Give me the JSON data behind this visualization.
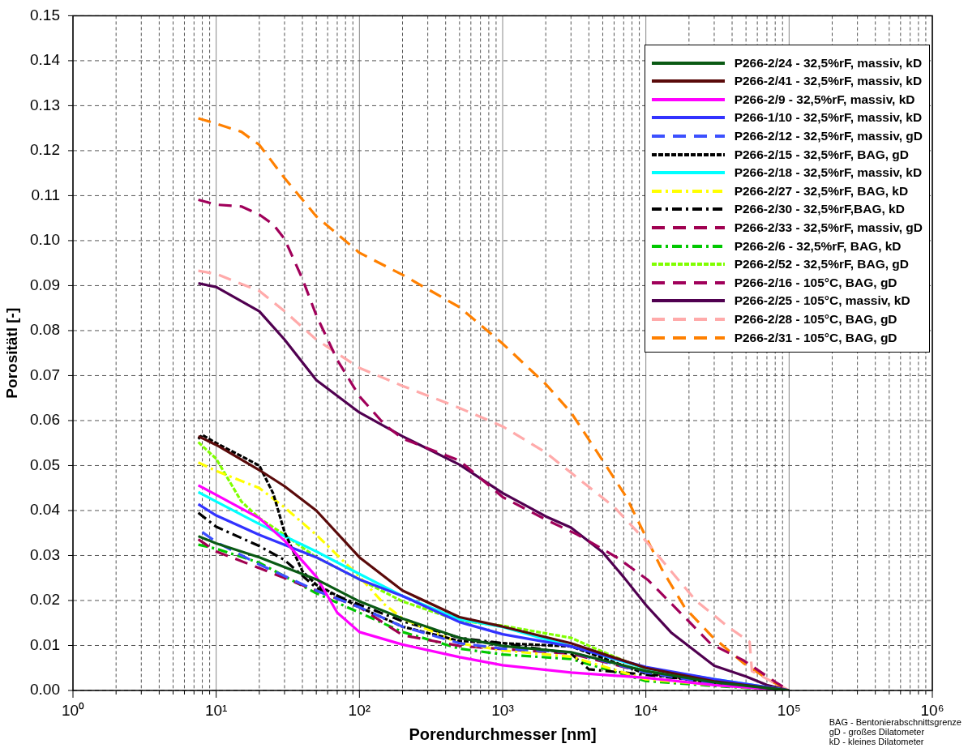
{
  "chart_data": {
    "type": "line",
    "xlabel": "Porendurchmesser [nm]",
    "ylabel": "Porositätl [-]",
    "log": "x",
    "grid": true,
    "legend": "top right",
    "marker": "none",
    "xlim": [
      1,
      1000000
    ],
    "ylim": [
      0,
      0.15
    ],
    "xticks": [
      {
        "value": 1,
        "label": "10⁰"
      },
      {
        "value": 2,
        "label": null
      },
      {
        "value": 3,
        "label": null
      },
      {
        "value": 4,
        "label": null
      },
      {
        "value": 5,
        "label": null
      },
      {
        "value": 6,
        "label": null
      },
      {
        "value": 7,
        "label": null
      },
      {
        "value": 8,
        "label": null
      },
      {
        "value": 9,
        "label": null
      },
      {
        "value": 10,
        "label": "10¹"
      },
      {
        "value": 20,
        "label": null
      },
      {
        "value": 30,
        "label": null
      },
      {
        "value": 40,
        "label": null
      },
      {
        "value": 50,
        "label": null
      },
      {
        "value": 60,
        "label": null
      },
      {
        "value": 70,
        "label": null
      },
      {
        "value": 80,
        "label": null
      },
      {
        "value": 90,
        "label": null
      },
      {
        "value": 100,
        "label": "10²"
      },
      {
        "value": 200,
        "label": null
      },
      {
        "value": 300,
        "label": null
      },
      {
        "value": 400,
        "label": null
      },
      {
        "value": 500,
        "label": null
      },
      {
        "value": 600,
        "label": null
      },
      {
        "value": 700,
        "label": null
      },
      {
        "value": 800,
        "label": null
      },
      {
        "value": 900,
        "label": null
      },
      {
        "value": 1000,
        "label": "10³"
      },
      {
        "value": 2000,
        "label": null
      },
      {
        "value": 3000,
        "label": null
      },
      {
        "value": 4000,
        "label": null
      },
      {
        "value": 5000,
        "label": null
      },
      {
        "value": 6000,
        "label": null
      },
      {
        "value": 7000,
        "label": null
      },
      {
        "value": 8000,
        "label": null
      },
      {
        "value": 9000,
        "label": null
      },
      {
        "value": 10000,
        "label": "10⁴"
      },
      {
        "value": 20000,
        "label": null
      },
      {
        "value": 30000,
        "label": null
      },
      {
        "value": 40000,
        "label": null
      },
      {
        "value": 50000,
        "label": null
      },
      {
        "value": 60000,
        "label": null
      },
      {
        "value": 70000,
        "label": null
      },
      {
        "value": 80000,
        "label": null
      },
      {
        "value": 90000,
        "label": null
      },
      {
        "value": 100000,
        "label": "10⁵"
      },
      {
        "value": 200000,
        "label": null
      },
      {
        "value": 300000,
        "label": null
      },
      {
        "value": 400000,
        "label": null
      },
      {
        "value": 500000,
        "label": null
      },
      {
        "value": 600000,
        "label": null
      },
      {
        "value": 700000,
        "label": null
      },
      {
        "value": 800000,
        "label": null
      },
      {
        "value": 900000,
        "label": null
      },
      {
        "value": 1000000,
        "label": "10⁶"
      }
    ],
    "yticks": [
      {
        "value": 0,
        "label": "0.00"
      },
      {
        "value": 0.01,
        "label": "0.01"
      },
      {
        "value": 0.02,
        "label": "0.02"
      },
      {
        "value": 0.03,
        "label": "0.03"
      },
      {
        "value": 0.04,
        "label": "0.04"
      },
      {
        "value": 0.05,
        "label": "0.05"
      },
      {
        "value": 0.06,
        "label": "0.06"
      },
      {
        "value": 0.07,
        "label": "0.07"
      },
      {
        "value": 0.08,
        "label": "0.08"
      },
      {
        "value": 0.09,
        "label": "0.09"
      },
      {
        "value": 0.1,
        "label": "0.10"
      },
      {
        "value": 0.11,
        "label": "0.11"
      },
      {
        "value": 0.12,
        "label": "0.12"
      },
      {
        "value": 0.13,
        "label": "0.13"
      },
      {
        "value": 0.14,
        "label": "0.14"
      },
      {
        "value": 0.15,
        "label": "0.15"
      }
    ],
    "annotations": [
      "BAG - Bentonierabschnittsgrenze",
      "gD - großes Dilatometer",
      "kD - kleines Dilatometer"
    ],
    "series": [
      {
        "name": "P266-2/24 - 32,5%rF, massiv, kD",
        "color": "#0a5a14",
        "line_style": "solid",
        "x": [
          7.5,
          10,
          20,
          50,
          100,
          200,
          500,
          1000,
          3000,
          10000,
          30000,
          100000
        ],
        "values": [
          0.0343,
          0.0327,
          0.0296,
          0.0247,
          0.0198,
          0.016,
          0.0117,
          0.0099,
          0.0085,
          0.0043,
          0.0018,
          0
        ]
      },
      {
        "name": "P266-2/41 - 32,5%rF, massiv, kD",
        "color": "#5a0a0a",
        "line_style": "solid",
        "x": [
          7.5,
          10,
          20,
          30,
          50,
          100,
          200,
          500,
          1000,
          3000,
          10000,
          30000,
          100000
        ],
        "values": [
          0.0565,
          0.0546,
          0.049,
          0.0454,
          0.04,
          0.0296,
          0.0222,
          0.0163,
          0.0142,
          0.0105,
          0.005,
          0.002,
          0
        ]
      },
      {
        "name": "P266-2/9 - 32,5%rF, massiv, kD",
        "color": "#ff00ff",
        "line_style": "solid",
        "x": [
          7.5,
          10,
          20,
          30,
          50,
          70,
          100,
          200,
          500,
          1000,
          3000,
          10000,
          30000,
          100000
        ],
        "values": [
          0.0456,
          0.0435,
          0.0383,
          0.0333,
          0.0253,
          0.0173,
          0.013,
          0.0102,
          0.0074,
          0.0056,
          0.004,
          0.0028,
          0.0012,
          0
        ]
      },
      {
        "name": "P266-1/10 - 32,5%rF, massiv, kD",
        "color": "#3232ff",
        "line_style": "solid",
        "x": [
          7.5,
          10,
          20,
          50,
          100,
          200,
          500,
          1000,
          3000,
          10000,
          30000,
          100000
        ],
        "values": [
          0.0414,
          0.0389,
          0.0346,
          0.0296,
          0.0247,
          0.021,
          0.0152,
          0.0125,
          0.0098,
          0.0052,
          0.0025,
          0
        ]
      },
      {
        "name": "P266-2/12 - 32,5%rF, massiv, gD",
        "color": "#3c50ff",
        "line_style": "dashed",
        "x": [
          8,
          10,
          20,
          50,
          100,
          200,
          500,
          1000,
          3000,
          10000,
          30000,
          100000
        ],
        "values": [
          0.0352,
          0.033,
          0.028,
          0.0222,
          0.0185,
          0.0142,
          0.0105,
          0.0093,
          0.0085,
          0.004,
          0.0015,
          0
        ]
      },
      {
        "name": "P266-2/15 - 32,5%rF, BAG, gD",
        "color": "#000000",
        "line_style": "dotted",
        "x": [
          7.5,
          8,
          10,
          20,
          25,
          30,
          40,
          50,
          100,
          200,
          500,
          1000,
          3000,
          10000,
          30000,
          100000
        ],
        "values": [
          0.0559,
          0.0568,
          0.055,
          0.05,
          0.0438,
          0.0352,
          0.0265,
          0.0235,
          0.0185,
          0.0142,
          0.011,
          0.0105,
          0.0098,
          0.0037,
          0.0017,
          0
        ]
      },
      {
        "name": "P266-2/18 - 32,5%rF, massiv, kD",
        "color": "#00ffff",
        "line_style": "solid",
        "x": [
          7.5,
          10,
          20,
          50,
          100,
          200,
          500,
          1000,
          3000,
          10000,
          30000,
          100000
        ],
        "values": [
          0.0441,
          0.042,
          0.037,
          0.0309,
          0.0259,
          0.021,
          0.0158,
          0.0141,
          0.0098,
          0.0049,
          0.0025,
          0
        ]
      },
      {
        "name": "P266-2/27 - 32,5%rF, BAG, kD",
        "color": "#ffff00",
        "line_style": "dashdot",
        "x": [
          7.5,
          10,
          20,
          30,
          50,
          100,
          150,
          200,
          500,
          1000,
          3000,
          10000,
          30000,
          100000
        ],
        "values": [
          0.0507,
          0.0488,
          0.045,
          0.0407,
          0.0346,
          0.0253,
          0.0191,
          0.016,
          0.0105,
          0.0089,
          0.0075,
          0.0025,
          0.0012,
          0
        ]
      },
      {
        "name": "P266-2/30 - 32,5%rF,BAG, kD",
        "color": "#000000",
        "line_style": "dashdot",
        "x": [
          7.5,
          10,
          20,
          30,
          50,
          100,
          200,
          500,
          1000,
          3000,
          4000,
          10000,
          30000,
          100000
        ],
        "values": [
          0.0395,
          0.0364,
          0.0321,
          0.029,
          0.0228,
          0.0191,
          0.0154,
          0.0117,
          0.0105,
          0.0082,
          0.0047,
          0.0035,
          0.0018,
          0
        ]
      },
      {
        "name": "P266-2/33 - 32,5%rF, massiv, gD",
        "color": "#a00050",
        "line_style": "dashed",
        "x": [
          7.5,
          10,
          20,
          50,
          100,
          200,
          500,
          1000,
          3000,
          10000,
          30000,
          100000
        ],
        "values": [
          0.0336,
          0.0309,
          0.0272,
          0.0222,
          0.0185,
          0.0123,
          0.0099,
          0.0092,
          0.0082,
          0.004,
          0.0015,
          0
        ]
      },
      {
        "name": "P266-2/6 - 32,5%rF, BAG, kD",
        "color": "#00c800",
        "line_style": "dashdot",
        "x": [
          7.5,
          10,
          20,
          50,
          100,
          200,
          500,
          1000,
          3000,
          10000,
          30000,
          100000
        ],
        "values": [
          0.0324,
          0.0315,
          0.0284,
          0.0216,
          0.0173,
          0.013,
          0.0093,
          0.008,
          0.007,
          0.0021,
          0.001,
          0
        ]
      },
      {
        "name": "P266-2/52 - 32,5%rF, BAG, gD",
        "color": "#80ff00",
        "line_style": "dotted",
        "x": [
          7.5,
          10,
          15,
          20,
          30,
          50,
          100,
          200,
          500,
          1000,
          3000,
          5000,
          10000,
          30000,
          100000
        ],
        "values": [
          0.0552,
          0.0515,
          0.042,
          0.0383,
          0.0346,
          0.0296,
          0.0247,
          0.0198,
          0.0155,
          0.0144,
          0.0117,
          0.0086,
          0.0046,
          0.0015,
          0
        ]
      },
      {
        "name": "P266-2/16 - 105°C, BAG, gD",
        "color": "#a0005a",
        "line_style": "dashed",
        "x": [
          7.5,
          10,
          15,
          20,
          25,
          30,
          40,
          50,
          70,
          100,
          150,
          200,
          500,
          1000,
          2000,
          3300,
          6400,
          10400,
          17500,
          28300,
          48000,
          81000,
          100000
        ],
        "values": [
          0.1091,
          0.108,
          0.1076,
          0.1058,
          0.1036,
          0.1004,
          0.0915,
          0.0834,
          0.0735,
          0.0654,
          0.0591,
          0.056,
          0.0511,
          0.043,
          0.038,
          0.0347,
          0.0294,
          0.0245,
          0.0172,
          0.0104,
          0.0067,
          0.0018,
          0
        ]
      },
      {
        "name": "P266-2/25 - 105°C, massiv, kD",
        "color": "#500050",
        "line_style": "solid",
        "x": [
          7.5,
          10,
          20,
          30,
          50,
          100,
          200,
          500,
          1000,
          2000,
          3000,
          5000,
          7000,
          10000,
          15000,
          20000,
          30000,
          50000,
          70000,
          100000
        ],
        "values": [
          0.0905,
          0.0897,
          0.0843,
          0.078,
          0.069,
          0.0618,
          0.0565,
          0.0502,
          0.0439,
          0.0387,
          0.0362,
          0.0307,
          0.0252,
          0.019,
          0.0129,
          0.0098,
          0.0055,
          0.0031,
          0.0012,
          0
        ]
      },
      {
        "name": "P266-2/28 - 105°C, BAG, gD",
        "color": "#ffaaaa",
        "line_style": "dashed",
        "x": [
          7.5,
          10,
          20,
          30,
          50,
          100,
          200,
          500,
          1000,
          2000,
          3000,
          6000,
          9700,
          22300,
          37700,
          53000,
          55000,
          100000
        ],
        "values": [
          0.0933,
          0.0926,
          0.0888,
          0.0843,
          0.078,
          0.0717,
          0.0677,
          0.0628,
          0.0587,
          0.0529,
          0.0484,
          0.0408,
          0.0337,
          0.02,
          0.0141,
          0.0108,
          0.0043,
          0
        ]
      },
      {
        "name": "P266-2/31 - 105°C, BAG, gD",
        "color": "#ff8000",
        "line_style": "dashed",
        "x": [
          7.5,
          10,
          15,
          20,
          30,
          50,
          100,
          200,
          500,
          1000,
          2000,
          3000,
          5000,
          7300,
          12900,
          18700,
          29000,
          47900,
          71000,
          100000
        ],
        "values": [
          0.1272,
          0.126,
          0.1242,
          0.1213,
          0.1139,
          0.1054,
          0.0973,
          0.0924,
          0.0852,
          0.0771,
          0.0681,
          0.0618,
          0.0511,
          0.043,
          0.027,
          0.0184,
          0.012,
          0.0061,
          0.0025,
          0
        ]
      }
    ]
  }
}
